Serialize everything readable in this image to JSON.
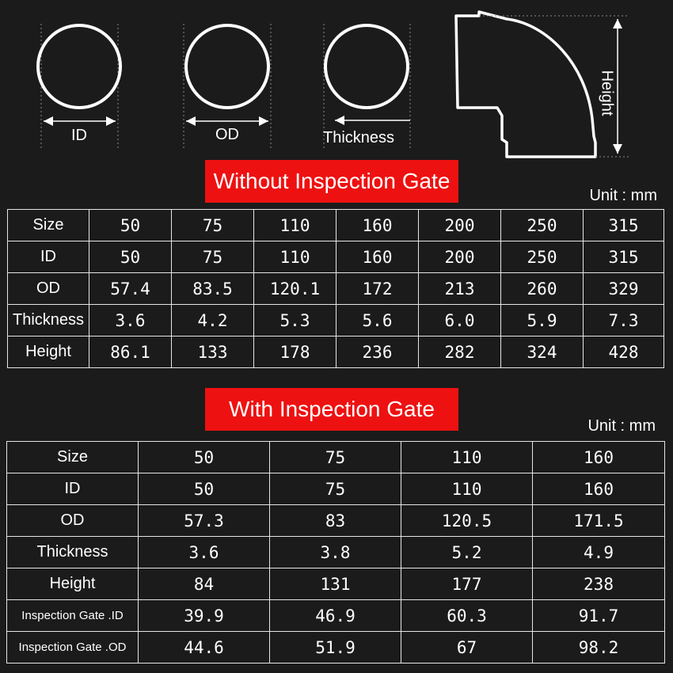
{
  "diagram": {
    "labels": {
      "id": "ID",
      "od": "OD",
      "thickness": "Thickness",
      "height": "Height"
    }
  },
  "section1": {
    "title": "Without Inspection Gate",
    "unit": "Unit : mm",
    "rows": [
      {
        "label": "Size",
        "values": [
          "50",
          "75",
          "110",
          "160",
          "200",
          "250",
          "315"
        ]
      },
      {
        "label": "ID",
        "values": [
          "50",
          "75",
          "110",
          "160",
          "200",
          "250",
          "315"
        ]
      },
      {
        "label": "OD",
        "values": [
          "57.4",
          "83.5",
          "120.1",
          "172",
          "213",
          "260",
          "329"
        ]
      },
      {
        "label": "Thickness",
        "values": [
          "3.6",
          "4.2",
          "5.3",
          "5.6",
          "6.0",
          "5.9",
          "7.3"
        ]
      },
      {
        "label": "Height",
        "values": [
          "86.1",
          "133",
          "178",
          "236",
          "282",
          "324",
          "428"
        ]
      }
    ]
  },
  "section2": {
    "title": "With Inspection Gate",
    "unit": "Unit : mm",
    "rows": [
      {
        "label": "Size",
        "values": [
          "50",
          "75",
          "110",
          "160"
        ]
      },
      {
        "label": "ID",
        "values": [
          "50",
          "75",
          "110",
          "160"
        ]
      },
      {
        "label": "OD",
        "values": [
          "57.3",
          "83",
          "120.5",
          "171.5"
        ]
      },
      {
        "label": "Thickness",
        "values": [
          "3.6",
          "3.8",
          "5.2",
          "4.9"
        ]
      },
      {
        "label": "Height",
        "values": [
          "84",
          "131",
          "177",
          "238"
        ]
      },
      {
        "label": "Inspection Gate .ID",
        "values": [
          "39.9",
          "46.9",
          "60.3",
          "91.7"
        ]
      },
      {
        "label": "Inspection Gate .OD",
        "values": [
          "44.6",
          "51.9",
          "67",
          "98.2"
        ]
      }
    ]
  }
}
